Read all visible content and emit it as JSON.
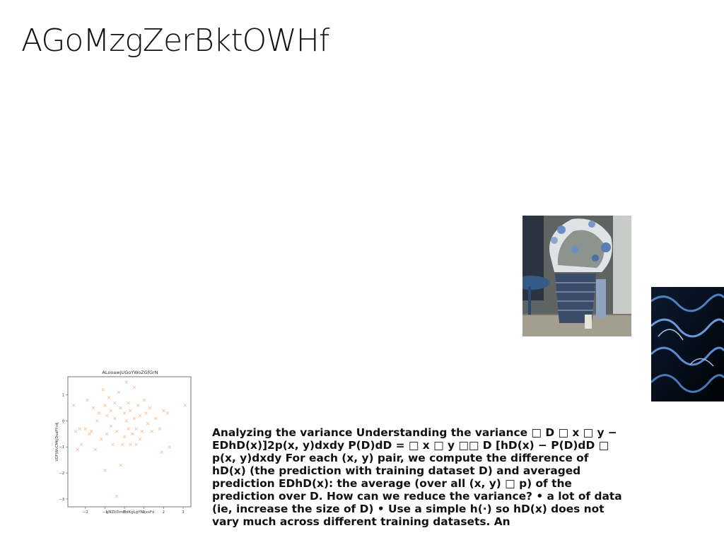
{
  "slide": {
    "title": "AGoMzgZerBktOWHf",
    "body_text": "Analyzing the variance Understanding the variance □ D □ x □ y − EDhD(x)]2p(x, y)dxdy P(D)dD = □ x □ y □□ D [hD(x) − P(D)dD □ p(x, y)dxdy For each (x, y) pair, we compute the difference of hD(x) (the prediction with training dataset D) and averaged prediction EDhD(x): the average (over all (x, y) □ p) of the prediction over D. How can we reduce the variance? • a lot of data (ie, increase the size of D) • Use a simple h(·) so hD(x) does not vary much across different training datasets. An"
  },
  "images": {
    "tree_photo": "photo of a frosted christmas tree in a woven basket",
    "waves_photo": "abstract dark blue wave pattern"
  },
  "chart_data": {
    "type": "scatter",
    "title": "ALooawjUGoYWoZGfGrN",
    "xlabel": "qNZkDmHdKgLgYNcxsFx",
    "ylabel": "VDFjWvCMKjDoaPYcdj",
    "xlim": [
      -2.9,
      3.4
    ],
    "ylim": [
      -3.3,
      1.7
    ],
    "xticks": [
      -2,
      -1,
      0,
      1,
      2,
      3
    ],
    "yticks": [
      1,
      0,
      -1,
      -2,
      -3
    ],
    "marker": "x",
    "color": "#f7c9a6",
    "points": [
      [
        -2.6,
        0.6
      ],
      [
        -2.5,
        -0.4
      ],
      [
        -2.4,
        -1.1
      ],
      [
        -2.3,
        -0.3
      ],
      [
        -2.2,
        -0.9
      ],
      [
        -2.0,
        -0.3
      ],
      [
        -1.9,
        0.8
      ],
      [
        -1.7,
        -0.4
      ],
      [
        -1.6,
        0.5
      ],
      [
        -1.5,
        -1.1
      ],
      [
        -1.4,
        0.0
      ],
      [
        -1.3,
        0.3
      ],
      [
        -1.2,
        -0.7
      ],
      [
        -1.1,
        1.2
      ],
      [
        -1.0,
        -1.9
      ],
      [
        -1.0,
        0.6
      ],
      [
        -0.9,
        0.2
      ],
      [
        -0.9,
        -0.5
      ],
      [
        -0.8,
        0.9
      ],
      [
        -0.7,
        -0.2
      ],
      [
        -0.7,
        0.4
      ],
      [
        -0.6,
        -0.9
      ],
      [
        -0.5,
        0.1
      ],
      [
        -0.5,
        0.7
      ],
      [
        -0.4,
        -0.4
      ],
      [
        -0.4,
        -2.9
      ],
      [
        -0.3,
        1.1
      ],
      [
        -0.2,
        -1.7
      ],
      [
        -0.2,
        0.5
      ],
      [
        -0.1,
        -0.9
      ],
      [
        0.0,
        0.3
      ],
      [
        0.0,
        -0.6
      ],
      [
        0.1,
        1.5
      ],
      [
        0.1,
        0.0
      ],
      [
        0.2,
        -0.3
      ],
      [
        0.2,
        0.7
      ],
      [
        0.3,
        -0.9
      ],
      [
        0.3,
        0.4
      ],
      [
        0.4,
        -0.5
      ],
      [
        0.5,
        1.3
      ],
      [
        0.5,
        0.1
      ],
      [
        0.6,
        -0.3
      ],
      [
        0.6,
        -0.9
      ],
      [
        0.7,
        0.6
      ],
      [
        0.8,
        0.2
      ],
      [
        0.8,
        -0.7
      ],
      [
        0.9,
        -0.4
      ],
      [
        1.0,
        0.8
      ],
      [
        1.1,
        0.3
      ],
      [
        1.2,
        -0.1
      ],
      [
        1.3,
        0.5
      ],
      [
        1.4,
        -0.4
      ],
      [
        1.6,
        0.1
      ],
      [
        1.8,
        -0.3
      ],
      [
        1.9,
        -1.2
      ],
      [
        2.0,
        0.4
      ],
      [
        2.2,
        0.3
      ],
      [
        2.3,
        -1.0
      ],
      [
        3.1,
        0.6
      ],
      [
        -1.8,
        -0.5
      ]
    ]
  }
}
